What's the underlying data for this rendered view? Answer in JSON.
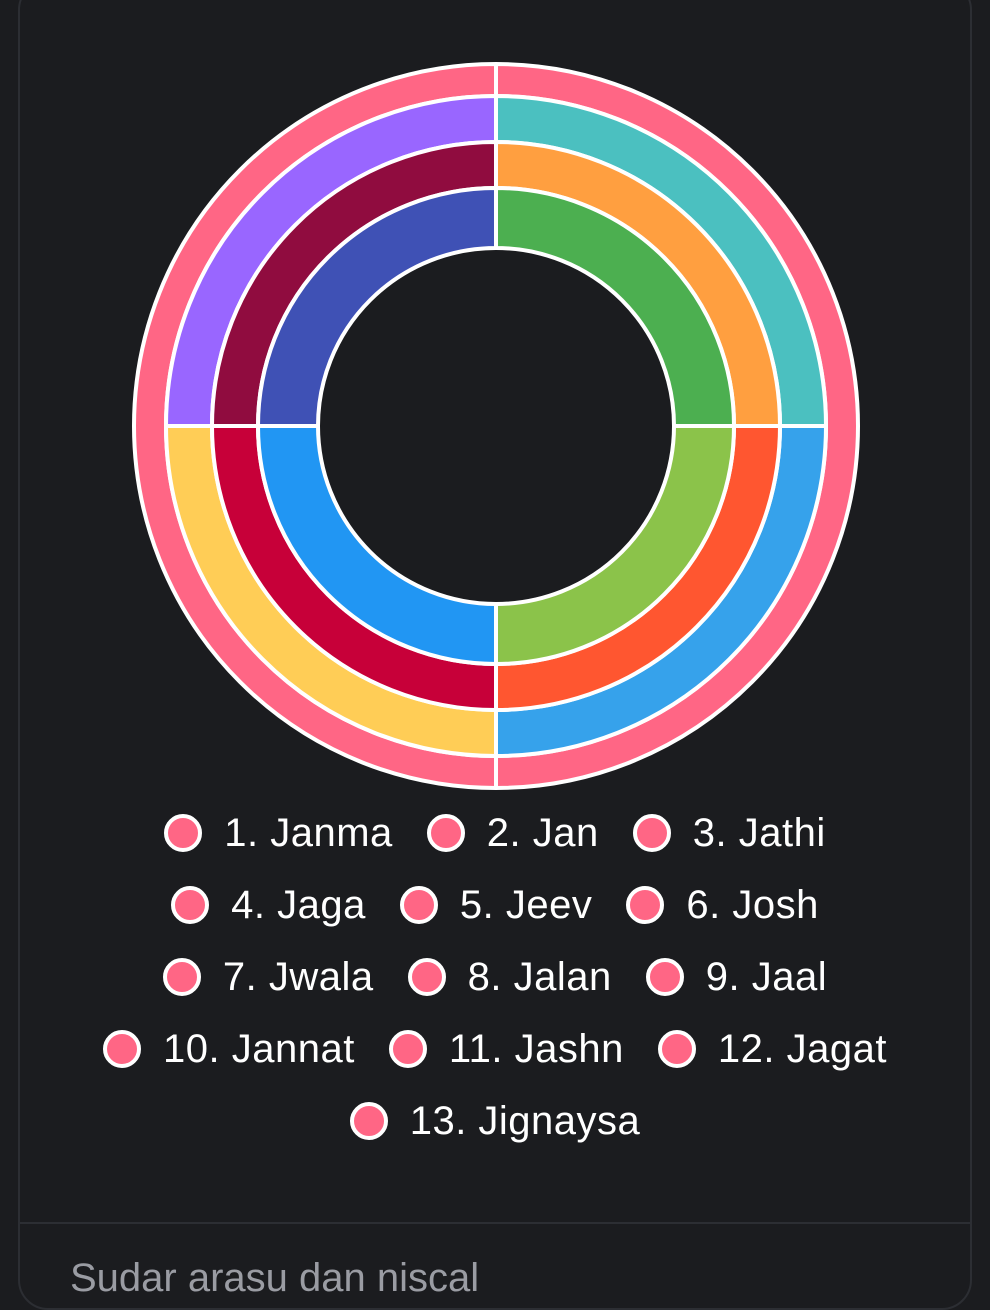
{
  "chart_data": {
    "type": "pie",
    "variant": "multi-ring-doughnut",
    "legend_placement": "bottom",
    "legend": [
      {
        "label": "1. Janma",
        "color": "#ff6685"
      },
      {
        "label": "2. Jan",
        "color": "#ff6685"
      },
      {
        "label": "3. Jathi",
        "color": "#ff6685"
      },
      {
        "label": "4. Jaga",
        "color": "#ff6685"
      },
      {
        "label": "5. Jeev",
        "color": "#ff6685"
      },
      {
        "label": "6. Josh",
        "color": "#ff6685"
      },
      {
        "label": "7. Jwala",
        "color": "#ff6685"
      },
      {
        "label": "8. Jalan",
        "color": "#ff6685"
      },
      {
        "label": "9. Jaal",
        "color": "#ff6685"
      },
      {
        "label": "10. Jannat",
        "color": "#ff6685"
      },
      {
        "label": "11. Jashn",
        "color": "#ff6685"
      },
      {
        "label": "12. Jagat",
        "color": "#ff6685"
      },
      {
        "label": "13. Jignaysa",
        "color": "#ff6685"
      }
    ],
    "rings": [
      {
        "segments": [
          {
            "value": 1,
            "color": "#ff6685"
          }
        ]
      },
      {
        "segments": [
          {
            "value": 1,
            "color": "#4bc0c0"
          },
          {
            "value": 1,
            "color": "#36a2eb"
          },
          {
            "value": 1,
            "color": "#ffcd56"
          },
          {
            "value": 1,
            "color": "#9966ff"
          }
        ]
      },
      {
        "segments": [
          {
            "value": 1,
            "color": "#ff9f40"
          },
          {
            "value": 1,
            "color": "#ff5630"
          },
          {
            "value": 1,
            "color": "#c70039"
          },
          {
            "value": 1,
            "color": "#900c3f"
          }
        ]
      },
      {
        "segments": [
          {
            "value": 1,
            "color": "#4caf50"
          },
          {
            "value": 1,
            "color": "#8bc34a"
          },
          {
            "value": 1,
            "color": "#2196f3"
          },
          {
            "value": 1,
            "color": "#3f51b5"
          }
        ]
      }
    ]
  },
  "footer": {
    "peek_text": "Sudar arasu dan niscal"
  }
}
